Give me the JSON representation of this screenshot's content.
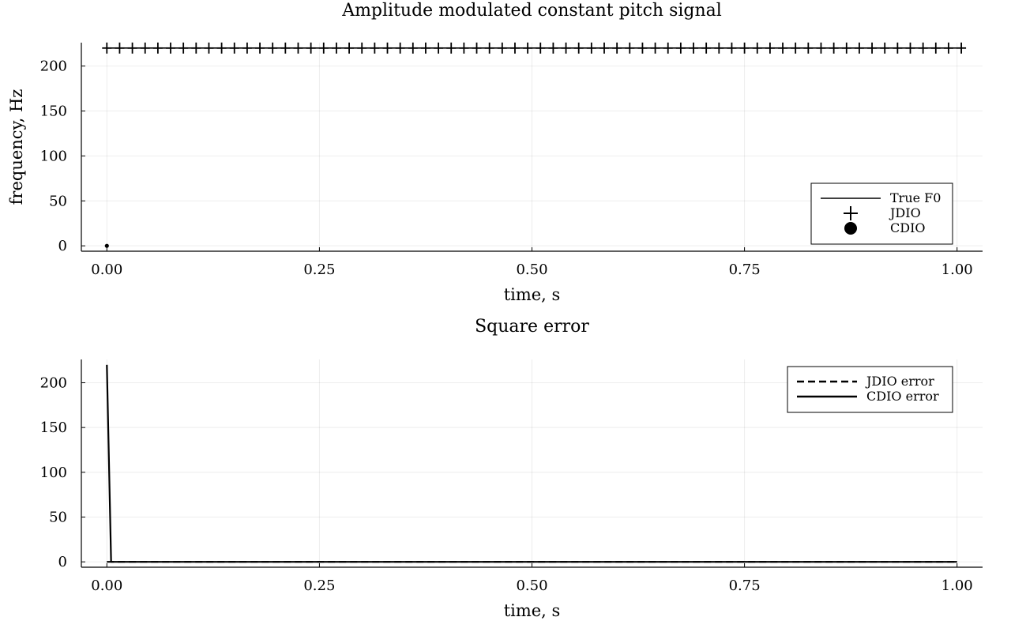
{
  "chart_data": [
    {
      "type": "line",
      "title": "Amplitude modulated constant pitch signal",
      "xlabel": "time, s",
      "ylabel": "frequency, Hz",
      "xlim": [
        -0.03,
        1.03
      ],
      "ylim": [
        -6,
        226
      ],
      "xticks": [
        0.0,
        0.25,
        0.5,
        0.75,
        1.0
      ],
      "xtick_labels": [
        "0.00",
        "0.25",
        "0.50",
        "0.75",
        "1.00"
      ],
      "yticks": [
        0,
        50,
        100,
        150,
        200
      ],
      "ytick_labels": [
        "0",
        "50",
        "100",
        "150",
        "200"
      ],
      "grid": true,
      "legend_position": "bottom-right",
      "series": [
        {
          "name": "True F0",
          "style": "line",
          "x": [
            0.0,
            1.0
          ],
          "y": [
            220,
            220
          ]
        },
        {
          "name": "JDIO",
          "style": "plus-markers",
          "x_start": 0.0,
          "x_end": 1.0,
          "x_step": 0.015,
          "y_constant": 220
        },
        {
          "name": "CDIO",
          "style": "circle-markers",
          "x": [
            0.0
          ],
          "y": [
            0
          ]
        }
      ]
    },
    {
      "type": "line",
      "title": "Square error",
      "xlabel": "time, s",
      "ylabel": "",
      "xlim": [
        -0.03,
        1.03
      ],
      "ylim": [
        -6,
        226
      ],
      "xticks": [
        0.0,
        0.25,
        0.5,
        0.75,
        1.0
      ],
      "xtick_labels": [
        "0.00",
        "0.25",
        "0.50",
        "0.75",
        "1.00"
      ],
      "yticks": [
        0,
        50,
        100,
        150,
        200
      ],
      "ytick_labels": [
        "0",
        "50",
        "100",
        "150",
        "200"
      ],
      "grid": true,
      "legend_position": "top-right",
      "series": [
        {
          "name": "JDIO error",
          "style": "dashed",
          "x": [
            0.0,
            1.0
          ],
          "y": [
            0,
            0
          ]
        },
        {
          "name": "CDIO error",
          "style": "solid",
          "x": [
            0.0,
            0.005,
            1.0
          ],
          "y": [
            220,
            0,
            0
          ]
        }
      ]
    }
  ]
}
